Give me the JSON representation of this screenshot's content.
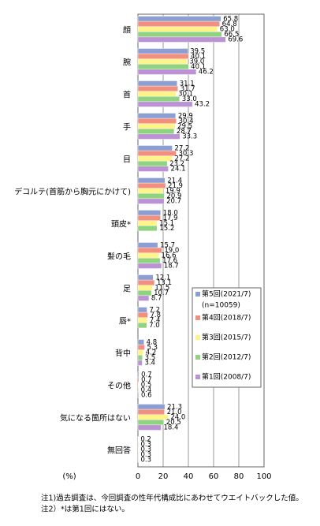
{
  "chart_data": {
    "type": "bar",
    "orientation": "horizontal",
    "categories": [
      "顔",
      "腕",
      "首",
      "手",
      "目",
      "デコルテ(首筋から胸元にかけて)",
      "頭皮*",
      "髪の毛",
      "足",
      "唇*",
      "背中",
      "その他",
      "気になる箇所はない",
      "無回答"
    ],
    "series": [
      {
        "name": "第5回(2021/7)",
        "color": "#8c9ed2",
        "values": [
          65.8,
          39.5,
          31.1,
          29.9,
          27.2,
          21.4,
          18.0,
          15.7,
          12.1,
          7.2,
          4.8,
          0.7,
          21.3,
          0.2
        ],
        "value_labels": [
          "65.8",
          "39.5",
          "31.1",
          "29.9",
          "27.2",
          "21.4",
          "18.0",
          "15.7",
          "12.1",
          "7.2",
          "4.8",
          "0.7",
          "21.3",
          "0.2"
        ]
      },
      {
        "name": "第4回(2018/7)",
        "color": "#f2907f",
        "values": [
          64.8,
          40.1,
          31.7,
          30.4,
          30.3,
          21.9,
          17.9,
          19.0,
          13.1,
          7.8,
          5.3,
          0.7,
          21.0,
          0.3
        ],
        "value_labels": [
          "64.8",
          "40.1",
          "31.7",
          "30.4",
          "30.3",
          "21.9",
          "17.9",
          "19.0",
          "13.1",
          "7.8",
          "5.3",
          "0.7",
          "21.0",
          "0.3"
        ]
      },
      {
        "name": "第3回(2015/7)",
        "color": "#fff38c",
        "values": [
          63.0,
          39.0,
          30.1,
          29.5,
          27.2,
          19.9,
          15.1,
          16.6,
          11.5,
          7.4,
          4.2,
          0.5,
          24.0,
          0.3
        ],
        "value_labels": [
          "63.0",
          "39.0",
          "30.1",
          "29.5",
          "27.2",
          "19.9",
          "15.1",
          "16.6",
          "11.5",
          "7.4",
          "4.2",
          "0.5",
          "24.0",
          "0.3"
        ]
      },
      {
        "name": "第2回(2012/7)",
        "color": "#8fd27f",
        "values": [
          66.5,
          40.1,
          33.0,
          28.7,
          23.2,
          20.9,
          15.2,
          17.6,
          10.7,
          7.0,
          3.5,
          0.4,
          20.5,
          0.3
        ],
        "value_labels": [
          "66.5",
          "40.1",
          "33.0",
          "28.7",
          "23.2",
          "20.9",
          "15.2",
          "17.6",
          "10.7",
          "7.0",
          "3.5",
          "0.4",
          "20.5",
          "0.3"
        ]
      },
      {
        "name": "第1回(2008/7)",
        "color": "#bb92d4",
        "values": [
          69.6,
          46.2,
          43.2,
          33.3,
          24.1,
          20.7,
          null,
          18.7,
          8.7,
          null,
          3.4,
          0.6,
          18.4,
          0.3
        ],
        "value_labels": [
          "69.6",
          "46.2",
          "43.2",
          "33.3",
          "24.1",
          "20.7",
          null,
          "18.7",
          "8.7",
          null,
          "3.4",
          "0.6",
          "18.4",
          "0.3"
        ]
      }
    ],
    "legend_note": "(n=10059)",
    "xlabel": "(%)",
    "xlim": [
      0,
      100
    ],
    "xticks": [
      0,
      20,
      40,
      60,
      80,
      100
    ],
    "grid": true,
    "notes": [
      "注1)過去調査は、今回調査の性年代構成比にあわせてウエイトバックした値。",
      "注2）*は第1回にはない。"
    ]
  }
}
